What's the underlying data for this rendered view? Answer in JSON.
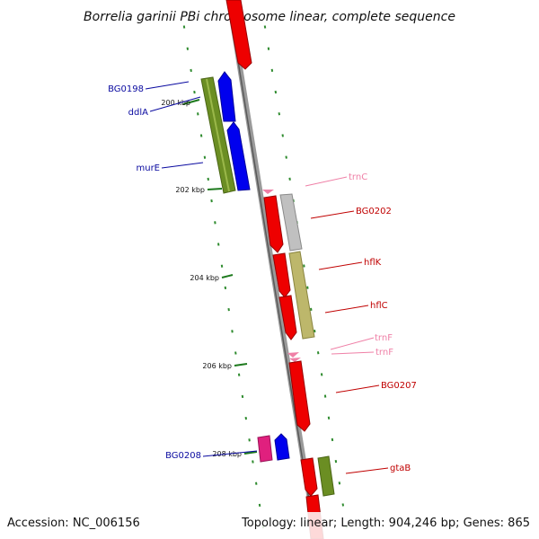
{
  "title": "Borrelia garinii PBi chromosome linear, complete sequence",
  "footer": {
    "accession": "Accession: NC_006156",
    "topology": "Topology: linear; Length: 904,246 bp; Genes: 865"
  },
  "colors": {
    "backbone": "#8a8a8a",
    "tick": "#2e8b2e",
    "left_label": "#0a0aa0",
    "right_label": "#c00000",
    "rna_label": "#ef7fa6"
  },
  "scale_labels": [
    "200 kbp",
    "202 kbp",
    "204 kbp",
    "206 kbp",
    "208 kbp"
  ],
  "genes_left": [
    "BG0198",
    "ddlA",
    "murE",
    "BG0208"
  ],
  "genes_right": [
    "trnC",
    "BG0202",
    "hflK",
    "hflC",
    "trnF",
    "trnF",
    "BG0207",
    "gtaB"
  ]
}
